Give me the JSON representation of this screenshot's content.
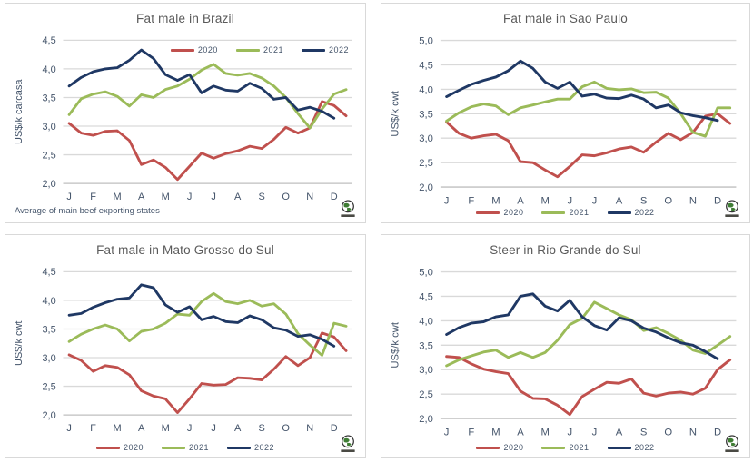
{
  "months": [
    "J",
    "F",
    "M",
    "A",
    "M",
    "J",
    "J",
    "A",
    "S",
    "O",
    "N",
    "D"
  ],
  "colors": {
    "grid": "#d9d9d9",
    "axis_line": "#bfbfbf",
    "title_text": "#595959",
    "tick_text": "#44546a",
    "series_2020": "#c0504d",
    "series_2021": "#9bbb59",
    "series_2022": "#1f3864"
  },
  "chart_data": [
    {
      "type": "line",
      "title": "Fat male in Brazil",
      "ylabel": "US$/k carcasa",
      "ylim": [
        2.0,
        4.5
      ],
      "ytick_step": 0.5,
      "ytick_labels": [
        "2,0",
        "2,5",
        "3,0",
        "3,5",
        "4,0",
        "4,5"
      ],
      "x_tick_labels": [
        "J",
        "F",
        "M",
        "A",
        "M",
        "J",
        "J",
        "A",
        "S",
        "O",
        "N",
        "D"
      ],
      "grid": "horizontal",
      "legend_position": "top-right",
      "footnote": "Average  of main beef exporting states",
      "x_note": "two samples per month (semi-monthly, Jan-Dec)",
      "series": [
        {
          "name": "2020",
          "color": "#c0504d",
          "values": [
            3.05,
            2.88,
            2.84,
            2.91,
            2.92,
            2.75,
            2.33,
            2.41,
            2.28,
            2.07,
            2.3,
            2.53,
            2.44,
            2.52,
            2.57,
            2.65,
            2.61,
            2.77,
            2.98,
            2.88,
            2.97,
            3.43,
            3.36,
            3.18
          ]
        },
        {
          "name": "2021",
          "color": "#9bbb59",
          "values": [
            3.2,
            3.48,
            3.56,
            3.6,
            3.52,
            3.35,
            3.55,
            3.5,
            3.64,
            3.7,
            3.82,
            3.98,
            4.08,
            3.92,
            3.89,
            3.92,
            3.84,
            3.7,
            3.5,
            3.22,
            2.97,
            3.3,
            3.56,
            3.64
          ]
        },
        {
          "name": "2022",
          "color": "#1f3864",
          "values": [
            3.7,
            3.85,
            3.95,
            4.0,
            4.02,
            4.15,
            4.33,
            4.18,
            3.9,
            3.8,
            3.9,
            3.58,
            3.7,
            3.63,
            3.61,
            3.75,
            3.66,
            3.47,
            3.5,
            3.28,
            3.33,
            3.26,
            3.14,
            null
          ]
        }
      ]
    },
    {
      "type": "line",
      "title": "Fat male in Sao Paulo",
      "ylabel": "US$/k cwt",
      "ylim": [
        2.0,
        5.0
      ],
      "ytick_step": 0.5,
      "ytick_labels": [
        "2,0",
        "2,5",
        "3,0",
        "3,5",
        "4,0",
        "4,5",
        "5,0"
      ],
      "x_tick_labels": [
        "J",
        "F",
        "M",
        "A",
        "M",
        "J",
        "J",
        "A",
        "S",
        "O",
        "N",
        "D"
      ],
      "grid": "horizontal",
      "legend_position": "bottom-center",
      "x_note": "two samples per month (semi-monthly, Jan-Dec)",
      "series": [
        {
          "name": "2020",
          "color": "#c0504d",
          "values": [
            3.33,
            3.1,
            3.0,
            3.05,
            3.08,
            2.95,
            2.52,
            2.5,
            2.35,
            2.21,
            2.42,
            2.66,
            2.64,
            2.7,
            2.78,
            2.82,
            2.71,
            2.92,
            3.1,
            2.97,
            3.12,
            3.45,
            3.5,
            3.3
          ]
        },
        {
          "name": "2021",
          "color": "#9bbb59",
          "values": [
            3.35,
            3.52,
            3.64,
            3.7,
            3.66,
            3.48,
            3.62,
            3.68,
            3.74,
            3.8,
            3.8,
            4.05,
            4.15,
            4.02,
            3.99,
            4.01,
            3.93,
            3.94,
            3.82,
            3.5,
            3.12,
            3.04,
            3.62,
            3.62
          ]
        },
        {
          "name": "2022",
          "color": "#1f3864",
          "values": [
            3.85,
            3.98,
            4.1,
            4.18,
            4.25,
            4.38,
            4.58,
            4.43,
            4.15,
            4.02,
            4.15,
            3.86,
            3.9,
            3.82,
            3.81,
            3.88,
            3.8,
            3.62,
            3.68,
            3.52,
            3.46,
            3.42,
            3.36,
            null
          ]
        }
      ]
    },
    {
      "type": "line",
      "title": "Fat male in Mato Grosso do Sul",
      "ylabel": "US$/k cwt",
      "ylim": [
        2.0,
        4.5
      ],
      "ytick_step": 0.5,
      "ytick_labels": [
        "2,0",
        "2,5",
        "3,0",
        "3,5",
        "4,0",
        "4,5"
      ],
      "x_tick_labels": [
        "J",
        "F",
        "M",
        "A",
        "M",
        "J",
        "J",
        "A",
        "S",
        "O",
        "N",
        "D"
      ],
      "grid": "horizontal",
      "legend_position": "bottom-center",
      "x_note": "two samples per month (semi-monthly, Jan-Dec)",
      "series": [
        {
          "name": "2020",
          "color": "#c0504d",
          "values": [
            3.05,
            2.95,
            2.76,
            2.86,
            2.83,
            2.7,
            2.42,
            2.33,
            2.28,
            2.04,
            2.28,
            2.55,
            2.52,
            2.53,
            2.65,
            2.64,
            2.61,
            2.8,
            3.02,
            2.86,
            3.0,
            3.43,
            3.36,
            3.12
          ]
        },
        {
          "name": "2021",
          "color": "#9bbb59",
          "values": [
            3.28,
            3.41,
            3.5,
            3.57,
            3.5,
            3.29,
            3.46,
            3.5,
            3.6,
            3.76,
            3.74,
            3.98,
            4.12,
            3.98,
            3.94,
            4.0,
            3.9,
            3.94,
            3.76,
            3.42,
            3.22,
            3.04,
            3.6,
            3.55
          ]
        },
        {
          "name": "2022",
          "color": "#1f3864",
          "values": [
            3.74,
            3.77,
            3.88,
            3.96,
            4.02,
            4.04,
            4.27,
            4.22,
            3.92,
            3.79,
            3.89,
            3.66,
            3.72,
            3.63,
            3.61,
            3.73,
            3.66,
            3.52,
            3.48,
            3.37,
            3.4,
            3.32,
            3.2,
            null
          ]
        }
      ]
    },
    {
      "type": "line",
      "title": "Steer  in Rio Grande do Sul",
      "ylabel": "US$/k cwt",
      "ylim": [
        2.0,
        5.0
      ],
      "ytick_step": 0.5,
      "ytick_labels": [
        "2,0",
        "2,5",
        "3,0",
        "3,5",
        "4,0",
        "4,5",
        "5,0"
      ],
      "x_tick_labels": [
        "J",
        "F",
        "M",
        "A",
        "M",
        "J",
        "J",
        "A",
        "S",
        "O",
        "N",
        "D"
      ],
      "grid": "horizontal",
      "legend_position": "bottom-center",
      "x_note": "two samples per month (semi-monthly, Jan-Dec)",
      "series": [
        {
          "name": "2020",
          "color": "#c0504d",
          "values": [
            3.27,
            3.25,
            3.12,
            3.01,
            2.96,
            2.92,
            2.56,
            2.41,
            2.4,
            2.27,
            2.08,
            2.45,
            2.6,
            2.74,
            2.72,
            2.81,
            2.52,
            2.46,
            2.52,
            2.54,
            2.5,
            2.62,
            3.0,
            3.2
          ]
        },
        {
          "name": "2021",
          "color": "#9bbb59",
          "values": [
            3.08,
            3.2,
            3.28,
            3.36,
            3.4,
            3.25,
            3.35,
            3.25,
            3.35,
            3.6,
            3.92,
            4.05,
            4.38,
            4.25,
            4.12,
            4.02,
            3.8,
            3.86,
            3.74,
            3.6,
            3.4,
            3.33,
            3.5,
            3.68
          ]
        },
        {
          "name": "2022",
          "color": "#1f3864",
          "values": [
            3.72,
            3.86,
            3.95,
            3.98,
            4.08,
            4.12,
            4.5,
            4.55,
            4.3,
            4.2,
            4.42,
            4.08,
            3.9,
            3.81,
            4.06,
            4.0,
            3.85,
            3.77,
            3.65,
            3.55,
            3.5,
            3.37,
            3.22,
            null
          ]
        }
      ]
    }
  ],
  "logo": {
    "name": "globe-logo",
    "description": "small globe emblem with text bar"
  }
}
